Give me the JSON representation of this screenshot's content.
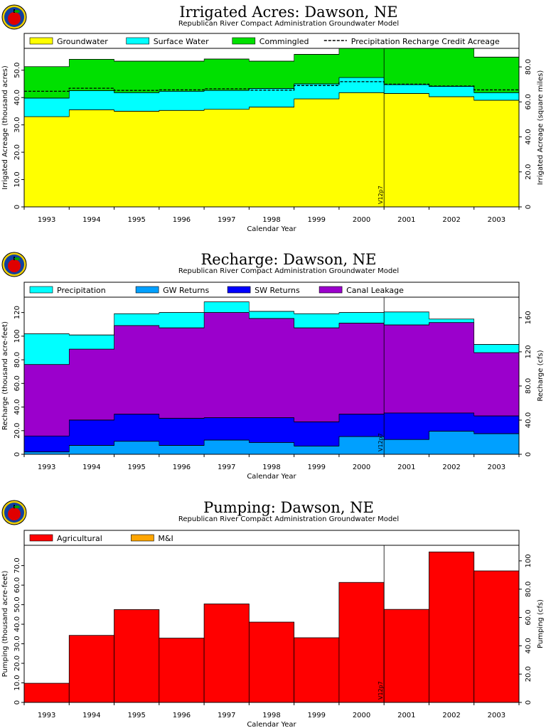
{
  "colors": {
    "groundwater": "#ffff00",
    "surface": "#00ffff",
    "commingled": "#00e000",
    "precip": "#00ffff",
    "gw_returns": "#00a0ff",
    "sw_returns": "#0000ff",
    "canal": "#9b00cc",
    "agricultural": "#ff0000",
    "mi": "#ffa500"
  },
  "chart_data": [
    {
      "type": "area",
      "title": "Irrigated Acres: Dawson, NE",
      "subtitle": "Republican River Compact Administration Groundwater Model",
      "xlabel": "Calendar Year",
      "ylabel": "Irrigated Acreage (thousand acres)",
      "ylabel2": "Irrigated Acreage (square miles)",
      "categories": [
        "1993",
        "1994",
        "1995",
        "1996",
        "1997",
        "1998",
        "1999",
        "2000",
        "2001",
        "2002",
        "2003"
      ],
      "ylim": [
        0,
        58
      ],
      "yticks": [
        "0",
        "10.0",
        "20.0",
        "30.0",
        "40.0",
        "50.0"
      ],
      "yticks_values": [
        0,
        10,
        20,
        30,
        40,
        50
      ],
      "ylim2": [
        0,
        90.6
      ],
      "yticks2": [
        "0",
        "20.0",
        "40.0",
        "60.0",
        "80.0"
      ],
      "yticks2_values": [
        0,
        20,
        40,
        60,
        80
      ],
      "marker": {
        "label": "V12p7",
        "index": 8
      },
      "legend_position": "top",
      "series": [
        {
          "name": "Groundwater",
          "color_key": "groundwater",
          "values": [
            33.0,
            35.5,
            35.0,
            35.3,
            35.7,
            36.5,
            39.5,
            41.8,
            41.5,
            40.3,
            39.0
          ]
        },
        {
          "name": "Surface Water",
          "color_key": "surface",
          "values": [
            6.8,
            7.0,
            6.8,
            7.0,
            6.9,
            6.8,
            5.5,
            5.5,
            3.2,
            3.8,
            2.8
          ]
        },
        {
          "name": "Commingled",
          "color_key": "commingled",
          "values": [
            11.5,
            11.5,
            11.5,
            11.0,
            11.5,
            10.0,
            10.8,
            11.5,
            14.5,
            14.2,
            13.0
          ]
        }
      ],
      "line_series": [
        {
          "name": "Precipitation Recharge Credit Acreage",
          "style": "dashed",
          "values": [
            42.3,
            43.4,
            42.6,
            42.8,
            43.2,
            42.7,
            44.4,
            45.8,
            44.9,
            44.2,
            42.8
          ]
        }
      ]
    },
    {
      "type": "area",
      "title": "Recharge: Dawson, NE",
      "subtitle": "Republican River Compact Administration Groundwater Model",
      "xlabel": "Calendar Year",
      "ylabel": "Recharge (thousand acre-feet)",
      "ylabel2": "Recharge (cfs)",
      "categories": [
        "1993",
        "1994",
        "1995",
        "1996",
        "1997",
        "1998",
        "1999",
        "2000",
        "2001",
        "2002",
        "2003"
      ],
      "ylim": [
        0,
        133
      ],
      "yticks": [
        "0",
        "20.0",
        "40.0",
        "60.0",
        "80.0",
        "100",
        "120"
      ],
      "yticks_values": [
        0,
        20,
        40,
        60,
        80,
        100,
        120
      ],
      "ylim2": [
        0,
        184
      ],
      "yticks2": [
        "0",
        "40.0",
        "80.0",
        "120",
        "160"
      ],
      "yticks2_values": [
        0,
        40,
        80,
        120,
        160
      ],
      "marker": {
        "label": "V12p7",
        "index": 8
      },
      "legend_position": "top",
      "series": [
        {
          "name": "Precipitation",
          "color_key": "precip",
          "values": [
            26.0,
            12.0,
            10.0,
            13.0,
            9.0,
            6.0,
            12.0,
            9.0,
            11.0,
            3.0,
            7.0
          ]
        },
        {
          "name": "GW Returns",
          "color_key": "gw_returns",
          "values": [
            2.0,
            7.5,
            11.0,
            7.5,
            12.0,
            10.0,
            7.0,
            15.0,
            12.5,
            19.5,
            17.5
          ]
        },
        {
          "name": "SW Returns",
          "color_key": "sw_returns",
          "values": [
            13.5,
            21.5,
            23.0,
            23.0,
            19.0,
            21.0,
            20.5,
            19.0,
            22.5,
            15.5,
            15.0
          ]
        },
        {
          "name": "Canal Leakage",
          "color_key": "canal",
          "values": [
            60.5,
            60.0,
            75.0,
            76.5,
            89.0,
            84.0,
            79.5,
            77.0,
            74.5,
            76.5,
            53.5
          ]
        }
      ]
    },
    {
      "type": "bar",
      "title": "Pumping: Dawson, NE",
      "subtitle": "Republican River Compact Administration Groundwater Model",
      "xlabel": "Calendar Year",
      "ylabel": "Pumping (thousand acre-feet)",
      "ylabel2": "Pumping (cfs)",
      "categories": [
        "1993",
        "1994",
        "1995",
        "1996",
        "1997",
        "1998",
        "1999",
        "2000",
        "2001",
        "2002",
        "2003"
      ],
      "ylim": [
        0,
        80.4
      ],
      "yticks": [
        "0",
        "10.0",
        "20.0",
        "30.0",
        "40.0",
        "50.0",
        "60.0",
        "70.0"
      ],
      "yticks_values": [
        0,
        10,
        20,
        30,
        40,
        50,
        60,
        70
      ],
      "ylim2": [
        0,
        111
      ],
      "yticks2": [
        "0",
        "20.0",
        "40.0",
        "60.0",
        "80.0",
        "100"
      ],
      "yticks2_values": [
        0,
        20,
        40,
        60,
        80,
        100
      ],
      "marker": {
        "label": "V12p7",
        "index": 8
      },
      "legend_position": "top",
      "series": [
        {
          "name": "Agricultural",
          "color_key": "agricultural",
          "values": [
            9.8,
            34.3,
            47.5,
            32.9,
            50.4,
            41.1,
            33.1,
            61.4,
            47.6,
            77.0,
            67.3
          ]
        },
        {
          "name": "M&I",
          "color_key": "mi",
          "values": [
            0,
            0,
            0,
            0,
            0,
            0,
            0,
            0,
            0,
            0,
            0
          ]
        }
      ]
    }
  ]
}
